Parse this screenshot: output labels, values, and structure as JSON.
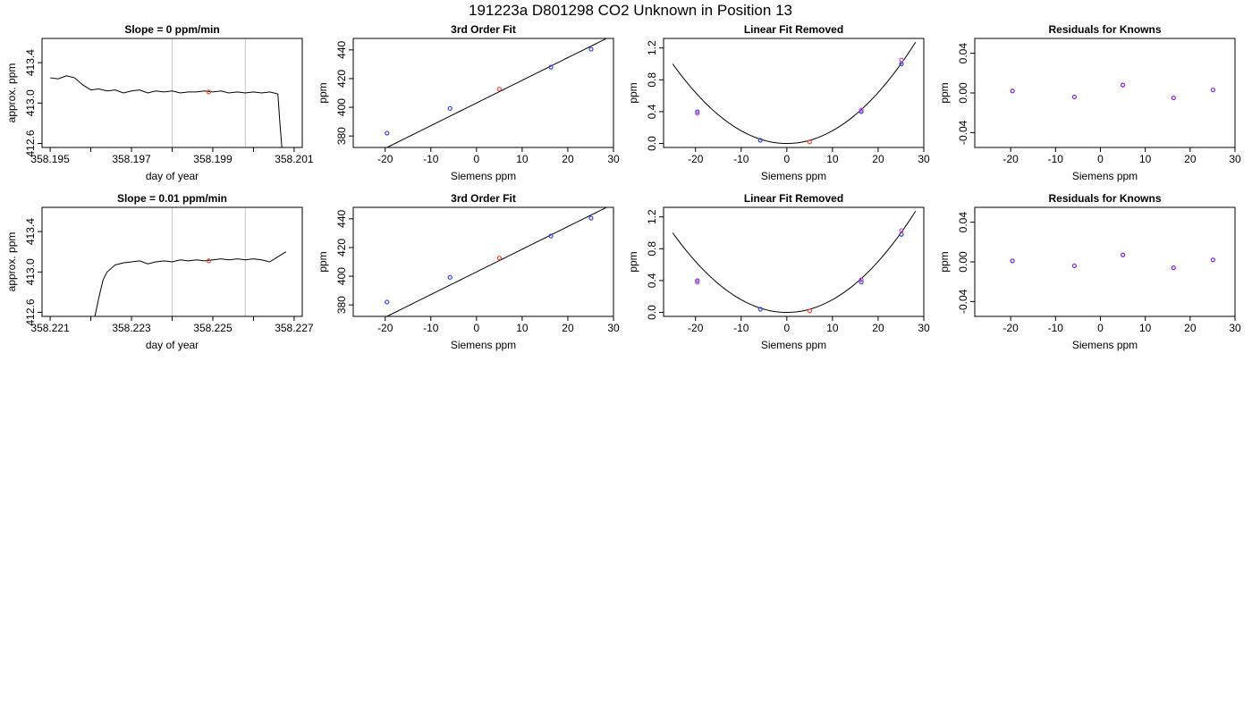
{
  "page": {
    "title": "191223a     D801298   CO2 Unknown in Position  13"
  },
  "chart_data": [
    {
      "type": "line",
      "title": "Slope =  0  ppm/min",
      "xlabel": "day of year",
      "ylabel": "approx. ppm",
      "xlim": [
        358.1948,
        358.2012
      ],
      "ylim": [
        412.56,
        413.64
      ],
      "xticks": [
        {
          "v": 358.195,
          "label": "358.195"
        },
        {
          "v": 358.196,
          "label": ""
        },
        {
          "v": 358.197,
          "label": "358.197"
        },
        {
          "v": 358.198,
          "label": ""
        },
        {
          "v": 358.199,
          "label": "358.199"
        },
        {
          "v": 358.2,
          "label": ""
        },
        {
          "v": 358.201,
          "label": "358.201"
        }
      ],
      "yticks": [
        {
          "v": 412.6,
          "label": "412.6"
        },
        {
          "v": 413.0,
          "label": "413.0"
        },
        {
          "v": 413.4,
          "label": "413.4"
        }
      ],
      "vlines": [
        358.198,
        358.1998
      ],
      "series": [
        {
          "x": [
            358.195,
            358.1952,
            358.1954,
            358.1956,
            358.1958,
            358.196,
            358.1962,
            358.1964,
            358.1966,
            358.1968,
            358.197,
            358.1972,
            358.1974,
            358.1976,
            358.1978,
            358.198,
            358.1982,
            358.1984,
            358.1986,
            358.1988,
            358.199,
            358.1992,
            358.1994,
            358.1996,
            358.1998,
            358.2,
            358.2002,
            358.2004,
            358.2006,
            358.20065,
            358.2007
          ],
          "y": [
            413.25,
            413.24,
            413.27,
            413.25,
            413.18,
            413.13,
            413.14,
            413.12,
            413.13,
            413.1,
            413.12,
            413.13,
            413.1,
            413.12,
            413.11,
            413.12,
            413.1,
            413.11,
            413.11,
            413.12,
            413.11,
            413.12,
            413.1,
            413.11,
            413.1,
            413.11,
            413.1,
            413.11,
            413.09,
            412.8,
            412.55
          ]
        }
      ],
      "marked_points": [
        {
          "x": 358.1989,
          "y": 413.11,
          "color": "#e8483a"
        }
      ]
    },
    {
      "type": "scatter",
      "title": "3rd Order Fit",
      "xlabel": "Siemens ppm",
      "ylabel": "ppm",
      "xlim": [
        -27,
        30
      ],
      "ylim": [
        372,
        448
      ],
      "xticks": [
        {
          "v": -20,
          "label": "-20"
        },
        {
          "v": -10,
          "label": "-10"
        },
        {
          "v": 0,
          "label": "0"
        },
        {
          "v": 10,
          "label": "10"
        },
        {
          "v": 20,
          "label": "20"
        },
        {
          "v": 30,
          "label": "30"
        }
      ],
      "yticks": [
        {
          "v": 380,
          "label": "380"
        },
        {
          "v": 400,
          "label": "400"
        },
        {
          "v": 420,
          "label": "420"
        },
        {
          "v": 440,
          "label": "440"
        }
      ],
      "fit": {
        "kind": "linear",
        "intercept": 403.0,
        "slope": 1.58,
        "xrange": [
          -25,
          28.5
        ]
      },
      "points": [
        {
          "x": -19.6,
          "y": 382.0,
          "color": "#3344dd"
        },
        {
          "x": -5.8,
          "y": 399.2,
          "color": "#3344dd"
        },
        {
          "x": 5.0,
          "y": 412.7,
          "color": "#e8483a"
        },
        {
          "x": 16.3,
          "y": 428.0,
          "color": "#3344dd"
        },
        {
          "x": 25.1,
          "y": 440.5,
          "color": "#3344dd"
        }
      ]
    },
    {
      "type": "scatter",
      "title": "Linear Fit Removed",
      "xlabel": "Siemens ppm",
      "ylabel": "ppm",
      "xlim": [
        -27,
        30
      ],
      "ylim": [
        -0.05,
        1.32
      ],
      "xticks": [
        {
          "v": -20,
          "label": "-20"
        },
        {
          "v": -10,
          "label": "-10"
        },
        {
          "v": 0,
          "label": "0"
        },
        {
          "v": 10,
          "label": "10"
        },
        {
          "v": 20,
          "label": "20"
        },
        {
          "v": 30,
          "label": "30"
        }
      ],
      "yticks": [
        {
          "v": 0.0,
          "label": "0.0"
        },
        {
          "v": 0.4,
          "label": "0.4"
        },
        {
          "v": 0.8,
          "label": "0.8"
        },
        {
          "v": 1.2,
          "label": "1.2"
        }
      ],
      "fit": {
        "kind": "quadratic",
        "a": 0.0016,
        "b": 0.0,
        "c": 0.0,
        "xrange": [
          -25,
          28.2
        ]
      },
      "points": [
        {
          "x": -19.6,
          "y": 0.4,
          "color": "#3344dd"
        },
        {
          "x": -19.6,
          "y": 0.38,
          "color": "#cc44cc"
        },
        {
          "x": -5.8,
          "y": 0.04,
          "color": "#3344dd"
        },
        {
          "x": 5.0,
          "y": 0.02,
          "color": "#e8483a"
        },
        {
          "x": 16.3,
          "y": 0.4,
          "color": "#3344dd"
        },
        {
          "x": 16.3,
          "y": 0.42,
          "color": "#cc44cc"
        },
        {
          "x": 25.1,
          "y": 1.0,
          "color": "#3344dd"
        },
        {
          "x": 25.1,
          "y": 1.05,
          "color": "#cc44cc"
        }
      ]
    },
    {
      "type": "scatter",
      "title": "Residuals for Knowns",
      "xlabel": "Siemens ppm",
      "ylabel": "ppm",
      "xlim": [
        -28,
        30
      ],
      "ylim": [
        -0.055,
        0.055
      ],
      "xticks": [
        {
          "v": -20,
          "label": "-20"
        },
        {
          "v": -10,
          "label": "-10"
        },
        {
          "v": 0,
          "label": "0"
        },
        {
          "v": 10,
          "label": "10"
        },
        {
          "v": 20,
          "label": "20"
        },
        {
          "v": 30,
          "label": "30"
        }
      ],
      "yticks": [
        {
          "v": -0.04,
          "label": "-0.04"
        },
        {
          "v": 0.0,
          "label": "0.00"
        },
        {
          "v": 0.04,
          "label": "0.04"
        }
      ],
      "points": [
        {
          "x": -19.6,
          "y": 0.002,
          "color": "#7722dd"
        },
        {
          "x": -5.8,
          "y": -0.004,
          "color": "#7722dd"
        },
        {
          "x": 5.0,
          "y": 0.008,
          "color": "#7722dd"
        },
        {
          "x": 16.3,
          "y": -0.005,
          "color": "#7722dd"
        },
        {
          "x": 25.1,
          "y": 0.003,
          "color": "#7722dd"
        }
      ]
    },
    {
      "type": "line",
      "title": "Slope =  0.01  ppm/min",
      "xlabel": "day of year",
      "ylabel": "approx. ppm",
      "xlim": [
        358.2208,
        358.2272
      ],
      "ylim": [
        412.56,
        413.64
      ],
      "xticks": [
        {
          "v": 358.221,
          "label": "358.221"
        },
        {
          "v": 358.222,
          "label": ""
        },
        {
          "v": 358.223,
          "label": "358.223"
        },
        {
          "v": 358.224,
          "label": ""
        },
        {
          "v": 358.225,
          "label": "358.225"
        },
        {
          "v": 358.226,
          "label": ""
        },
        {
          "v": 358.227,
          "label": "358.227"
        }
      ],
      "yticks": [
        {
          "v": 412.6,
          "label": "412.6"
        },
        {
          "v": 413.0,
          "label": "413.0"
        },
        {
          "v": 413.4,
          "label": "413.4"
        }
      ],
      "vlines": [
        358.224,
        358.2258
      ],
      "series": [
        {
          "x": [
            358.2221,
            358.2222,
            358.2223,
            358.2224,
            358.2226,
            358.2228,
            358.223,
            358.2232,
            358.2234,
            358.2236,
            358.2238,
            358.224,
            358.2242,
            358.2244,
            358.2246,
            358.2248,
            358.225,
            358.2252,
            358.2254,
            358.2256,
            358.2258,
            358.226,
            358.2262,
            358.2264,
            358.2266,
            358.2268
          ],
          "y": [
            412.56,
            412.75,
            412.92,
            413.0,
            413.07,
            413.09,
            413.1,
            413.11,
            413.08,
            413.1,
            413.11,
            413.1,
            413.12,
            413.11,
            413.12,
            413.11,
            413.12,
            413.13,
            413.12,
            413.13,
            413.12,
            413.13,
            413.12,
            413.1,
            413.15,
            413.2
          ]
        }
      ],
      "marked_points": [
        {
          "x": 358.2249,
          "y": 413.11,
          "color": "#e8483a"
        }
      ]
    },
    {
      "type": "scatter",
      "title": "3rd Order Fit",
      "xlabel": "Siemens ppm",
      "ylabel": "ppm",
      "xlim": [
        -27,
        30
      ],
      "ylim": [
        372,
        448
      ],
      "xticks": [
        {
          "v": -20,
          "label": "-20"
        },
        {
          "v": -10,
          "label": "-10"
        },
        {
          "v": 0,
          "label": "0"
        },
        {
          "v": 10,
          "label": "10"
        },
        {
          "v": 20,
          "label": "20"
        },
        {
          "v": 30,
          "label": "30"
        }
      ],
      "yticks": [
        {
          "v": 380,
          "label": "380"
        },
        {
          "v": 400,
          "label": "400"
        },
        {
          "v": 420,
          "label": "420"
        },
        {
          "v": 440,
          "label": "440"
        }
      ],
      "fit": {
        "kind": "linear",
        "intercept": 403.0,
        "slope": 1.58,
        "xrange": [
          -25,
          28.5
        ]
      },
      "points": [
        {
          "x": -19.6,
          "y": 382.0,
          "color": "#3344dd"
        },
        {
          "x": -5.8,
          "y": 399.2,
          "color": "#3344dd"
        },
        {
          "x": 5.0,
          "y": 412.7,
          "color": "#e8483a"
        },
        {
          "x": 16.3,
          "y": 428.0,
          "color": "#3344dd"
        },
        {
          "x": 25.1,
          "y": 440.5,
          "color": "#3344dd"
        }
      ]
    },
    {
      "type": "scatter",
      "title": "Linear Fit Removed",
      "xlabel": "Siemens ppm",
      "ylabel": "ppm",
      "xlim": [
        -27,
        30
      ],
      "ylim": [
        -0.05,
        1.32
      ],
      "xticks": [
        {
          "v": -20,
          "label": "-20"
        },
        {
          "v": -10,
          "label": "-10"
        },
        {
          "v": 0,
          "label": "0"
        },
        {
          "v": 10,
          "label": "10"
        },
        {
          "v": 20,
          "label": "20"
        },
        {
          "v": 30,
          "label": "30"
        }
      ],
      "yticks": [
        {
          "v": 0.0,
          "label": "0.0"
        },
        {
          "v": 0.4,
          "label": "0.4"
        },
        {
          "v": 0.8,
          "label": "0.8"
        },
        {
          "v": 1.2,
          "label": "1.2"
        }
      ],
      "fit": {
        "kind": "quadratic",
        "a": 0.0016,
        "b": 0.0,
        "c": 0.0,
        "xrange": [
          -25,
          28.2
        ]
      },
      "points": [
        {
          "x": -19.6,
          "y": 0.4,
          "color": "#3344dd"
        },
        {
          "x": -19.6,
          "y": 0.38,
          "color": "#cc44cc"
        },
        {
          "x": -5.8,
          "y": 0.04,
          "color": "#3344dd"
        },
        {
          "x": 5.0,
          "y": 0.02,
          "color": "#e8483a"
        },
        {
          "x": 16.3,
          "y": 0.38,
          "color": "#3344dd"
        },
        {
          "x": 16.3,
          "y": 0.41,
          "color": "#cc44cc"
        },
        {
          "x": 25.1,
          "y": 0.98,
          "color": "#3344dd"
        },
        {
          "x": 25.1,
          "y": 1.03,
          "color": "#cc44cc"
        }
      ]
    },
    {
      "type": "scatter",
      "title": "Residuals for Knowns",
      "xlabel": "Siemens ppm",
      "ylabel": "ppm",
      "xlim": [
        -28,
        30
      ],
      "ylim": [
        -0.055,
        0.055
      ],
      "xticks": [
        {
          "v": -20,
          "label": "-20"
        },
        {
          "v": -10,
          "label": "-10"
        },
        {
          "v": 0,
          "label": "0"
        },
        {
          "v": 10,
          "label": "10"
        },
        {
          "v": 20,
          "label": "20"
        },
        {
          "v": 30,
          "label": "30"
        }
      ],
      "yticks": [
        {
          "v": -0.04,
          "label": "-0.04"
        },
        {
          "v": 0.0,
          "label": "0.00"
        },
        {
          "v": 0.04,
          "label": "0.04"
        }
      ],
      "points": [
        {
          "x": -19.6,
          "y": 0.001,
          "color": "#7722dd"
        },
        {
          "x": -5.8,
          "y": -0.004,
          "color": "#7722dd"
        },
        {
          "x": 5.0,
          "y": 0.007,
          "color": "#7722dd"
        },
        {
          "x": 16.3,
          "y": -0.006,
          "color": "#7722dd"
        },
        {
          "x": 25.1,
          "y": 0.002,
          "color": "#7722dd"
        }
      ]
    }
  ]
}
